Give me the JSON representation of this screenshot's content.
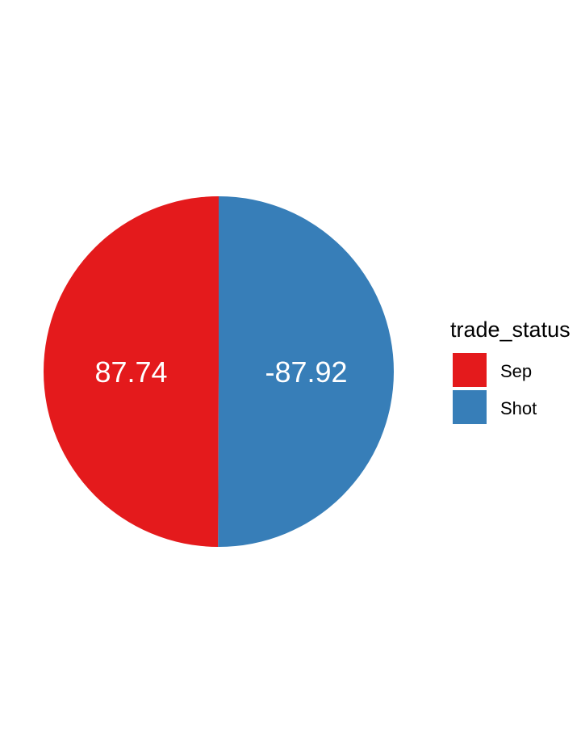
{
  "chart_data": {
    "type": "pie",
    "slices": [
      {
        "label": "Sep",
        "value": 87.74,
        "display": "87.74",
        "color": "#E41A1C"
      },
      {
        "label": "Shot",
        "value": -87.92,
        "display": "-87.92",
        "color": "#377EB8"
      }
    ],
    "legend": {
      "title": "trade_status",
      "position": "right",
      "items": [
        "Sep",
        "Shot"
      ]
    }
  }
}
